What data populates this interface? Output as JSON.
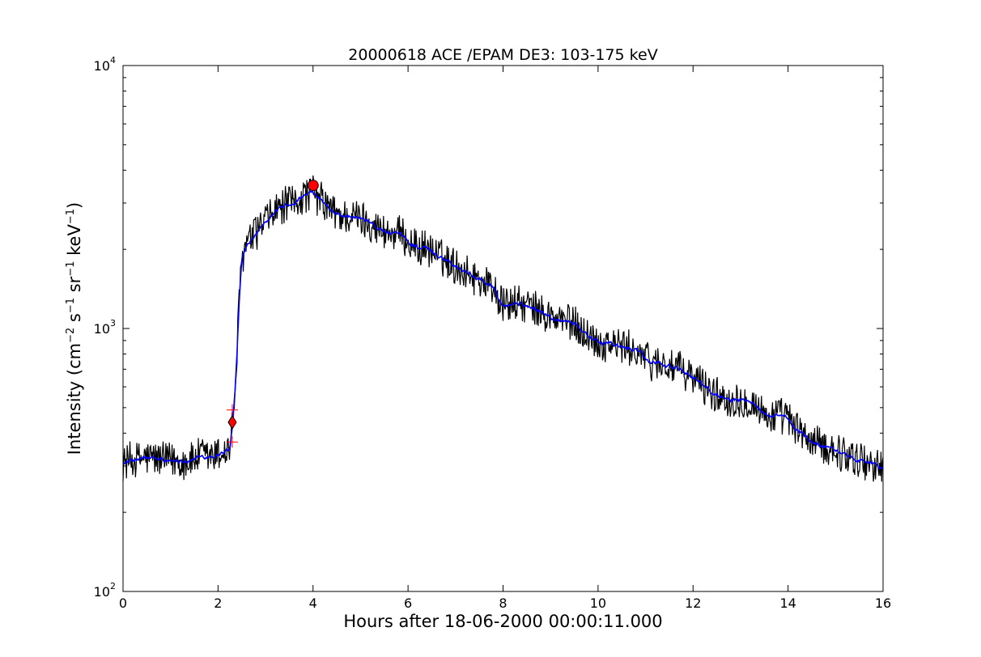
{
  "chart_data": {
    "type": "line",
    "title": "20000618 ACE /EPAM DE3: 103-175 keV",
    "xlabel": "Hours after 18-06-2000 00:00:11.000",
    "ylabel": {
      "prefix": "Intensity (cm",
      "exp1": "−2",
      "mid1": " s",
      "exp2": "−1",
      "mid2": " sr",
      "exp3": "−1",
      "mid3": " keV",
      "exp4": "−1",
      "suffix": ")"
    },
    "xlim": [
      0,
      16
    ],
    "ylim": [
      100,
      10000
    ],
    "yscale": "log",
    "grid": false,
    "x_ticks": [
      0,
      2,
      4,
      6,
      8,
      10,
      12,
      14,
      16
    ],
    "x_tick_labels": [
      "0",
      "2",
      "4",
      "6",
      "8",
      "10",
      "12",
      "14",
      "16"
    ],
    "y_ticks": [
      100,
      1000,
      10000
    ],
    "y_tick_labels": [
      {
        "base": "10",
        "exp": "2"
      },
      {
        "base": "10",
        "exp": "3"
      },
      {
        "base": "10",
        "exp": "4"
      }
    ],
    "series_profile": {
      "x": [
        0,
        0.5,
        1.0,
        1.5,
        2.0,
        2.25,
        2.3,
        2.35,
        2.4,
        2.45,
        2.5,
        2.6,
        2.8,
        3.0,
        3.2,
        3.5,
        3.8,
        4.0,
        4.2,
        4.5,
        5.0,
        5.5,
        6.0,
        6.5,
        7.0,
        7.5,
        7.8,
        8.0,
        8.3,
        8.6,
        9.0,
        9.5,
        10.0,
        10.5,
        10.8,
        11.0,
        11.5,
        12.0,
        12.5,
        13.0,
        13.3,
        13.5,
        14.0,
        14.3,
        14.5,
        15.0,
        15.5,
        16.0
      ],
      "y": [
        310,
        320,
        315,
        320,
        335,
        350,
        420,
        550,
        800,
        1300,
        1800,
        2100,
        2350,
        2600,
        2800,
        3000,
        3150,
        3250,
        3000,
        2700,
        2600,
        2350,
        2150,
        1950,
        1750,
        1550,
        1450,
        1250,
        1250,
        1200,
        1100,
        1050,
        880,
        850,
        820,
        760,
        720,
        650,
        560,
        530,
        520,
        470,
        450,
        400,
        370,
        340,
        320,
        290
      ]
    },
    "series": [
      {
        "color": "#000000",
        "noise_amplitude": 0.07
      },
      {
        "color": "#0000ff",
        "noise_amplitude": 0.025
      }
    ],
    "markers": [
      {
        "shape": "diamond",
        "x": 2.3,
        "y": 440,
        "color": "#ff0000"
      },
      {
        "shape": "plus",
        "x": 2.3,
        "y": 490,
        "color": "#ff0000"
      },
      {
        "shape": "plus",
        "x": 2.3,
        "y": 370,
        "color": "#ff0000"
      },
      {
        "shape": "circle",
        "x": 4.0,
        "y": 3500,
        "color": "#ff0000"
      }
    ]
  }
}
